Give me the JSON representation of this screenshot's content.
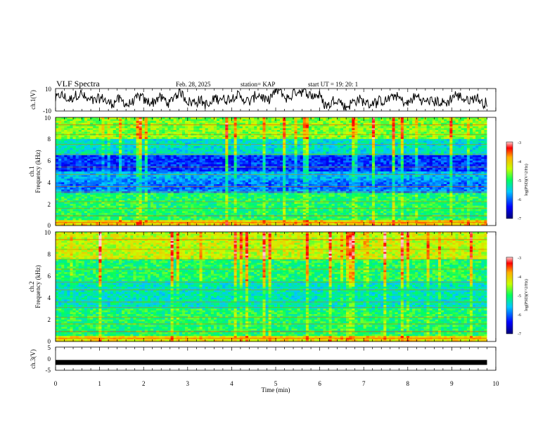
{
  "header": {
    "title": "VLF Spectra",
    "date": "Feb. 28, 2025",
    "station": "station= KAP",
    "start_time": "start  UT =   19: 20: 1"
  },
  "chart_data": [
    {
      "type": "line",
      "name": "ch1-voltage",
      "ylabel": "ch.1(V)",
      "ylim": [
        -10,
        10
      ],
      "yticks": [
        "10",
        "-10"
      ],
      "x_range_min": [
        0,
        9.8
      ],
      "description_of_series": "noisy waveform oscillating roughly between -9 and +9 V"
    },
    {
      "type": "heatmap",
      "name": "ch1-spectrogram",
      "ylabel": "Frequency (kHz)",
      "channel_label": "ch.1",
      "ylim": [
        0,
        10
      ],
      "yticks": [
        "0",
        "2",
        "4",
        "6",
        "8",
        "10"
      ],
      "colorbar": {
        "label": "log(PSD)(V^2/Hz)",
        "range": [
          -7,
          -3
        ],
        "ticks": [
          "-3",
          "-4",
          "-5",
          "-6",
          "-7"
        ]
      }
    },
    {
      "type": "heatmap",
      "name": "ch2-spectrogram",
      "ylabel": "Frequency (kHz)",
      "channel_label": "ch.2",
      "ylim": [
        0,
        10
      ],
      "yticks": [
        "0",
        "2",
        "4",
        "6",
        "8",
        "10"
      ],
      "colorbar": {
        "label": "log(PSD)(V^2/Hz)",
        "range": [
          -7,
          -3
        ],
        "ticks": [
          "-3",
          "-4",
          "-5",
          "-6",
          "-7"
        ]
      }
    },
    {
      "type": "line",
      "name": "ch3-voltage",
      "ylabel": "ch.3(V)",
      "ylim": [
        -5,
        5
      ],
      "yticks": [
        "5",
        "0",
        "-5"
      ],
      "series_value": -1.6
    }
  ],
  "xaxis": {
    "label": "Time (min)",
    "ticks": [
      "0",
      "1",
      "2",
      "3",
      "4",
      "5",
      "6",
      "7",
      "8",
      "9",
      "10"
    ],
    "range": [
      0,
      10
    ]
  }
}
